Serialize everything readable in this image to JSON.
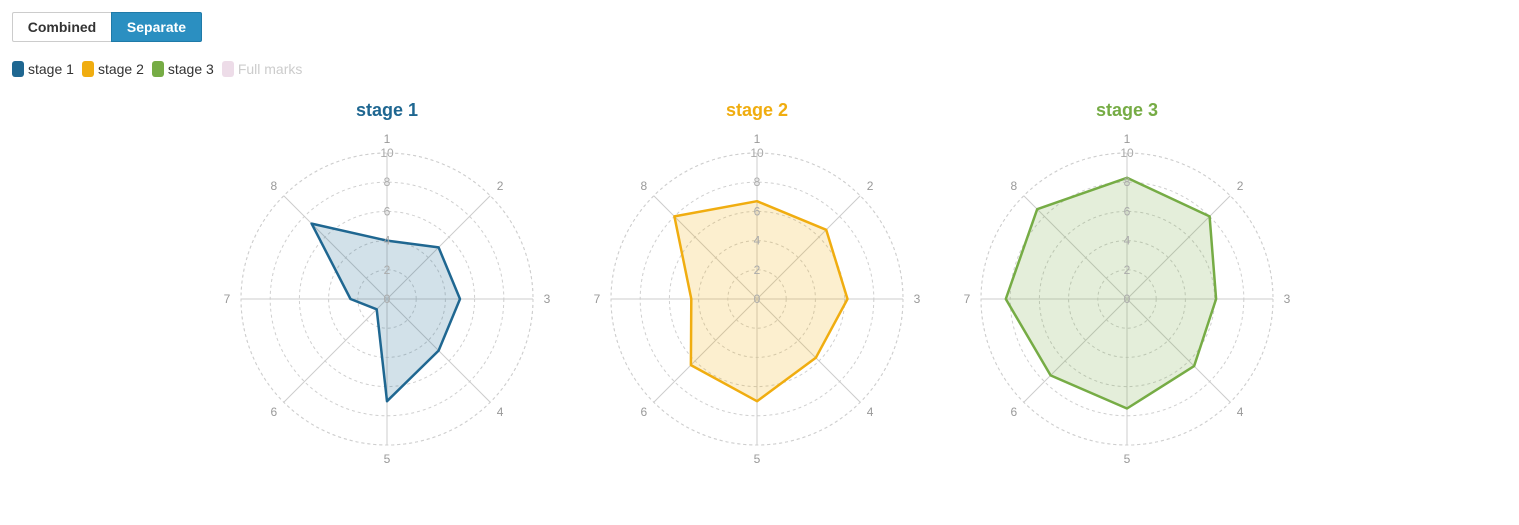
{
  "view_toggle": {
    "combined_label": "Combined",
    "separate_label": "Separate",
    "active": "Separate"
  },
  "legend": [
    {
      "name": "stage 1",
      "color": "#1f6791",
      "muted": false
    },
    {
      "name": "stage 2",
      "color": "#f0ad10",
      "muted": false
    },
    {
      "name": "stage 3",
      "color": "#76ac45",
      "muted": false
    },
    {
      "name": "Full marks",
      "color": "#eddce8",
      "muted": true
    }
  ],
  "chart_data": [
    {
      "type": "radar",
      "title": "stage 1",
      "title_color": "#1f6791",
      "fill_color": "#1f6791",
      "axes": [
        "1",
        "2",
        "3",
        "4",
        "5",
        "6",
        "7",
        "8"
      ],
      "radial_ticks": [
        0,
        2,
        4,
        6,
        8,
        10
      ],
      "range": [
        0,
        10
      ],
      "values": [
        4,
        5,
        5,
        5,
        7,
        1,
        2.5,
        7.3
      ]
    },
    {
      "type": "radar",
      "title": "stage 2",
      "title_color": "#f0ad10",
      "fill_color": "#f0ad10",
      "axes": [
        "1",
        "2",
        "3",
        "4",
        "5",
        "6",
        "7",
        "8"
      ],
      "radial_ticks": [
        0,
        2,
        4,
        6,
        8,
        10
      ],
      "range": [
        0,
        10
      ],
      "values": [
        6.7,
        6.7,
        6.2,
        5.7,
        7.0,
        6.4,
        4.5,
        8.0
      ]
    },
    {
      "type": "radar",
      "title": "stage 3",
      "title_color": "#76ac45",
      "fill_color": "#76ac45",
      "axes": [
        "1",
        "2",
        "3",
        "4",
        "5",
        "6",
        "7",
        "8"
      ],
      "radial_ticks": [
        0,
        2,
        4,
        6,
        8,
        10
      ],
      "range": [
        0,
        10
      ],
      "values": [
        8.3,
        8.0,
        6.1,
        6.5,
        7.5,
        7.4,
        8.3,
        8.7
      ]
    }
  ]
}
